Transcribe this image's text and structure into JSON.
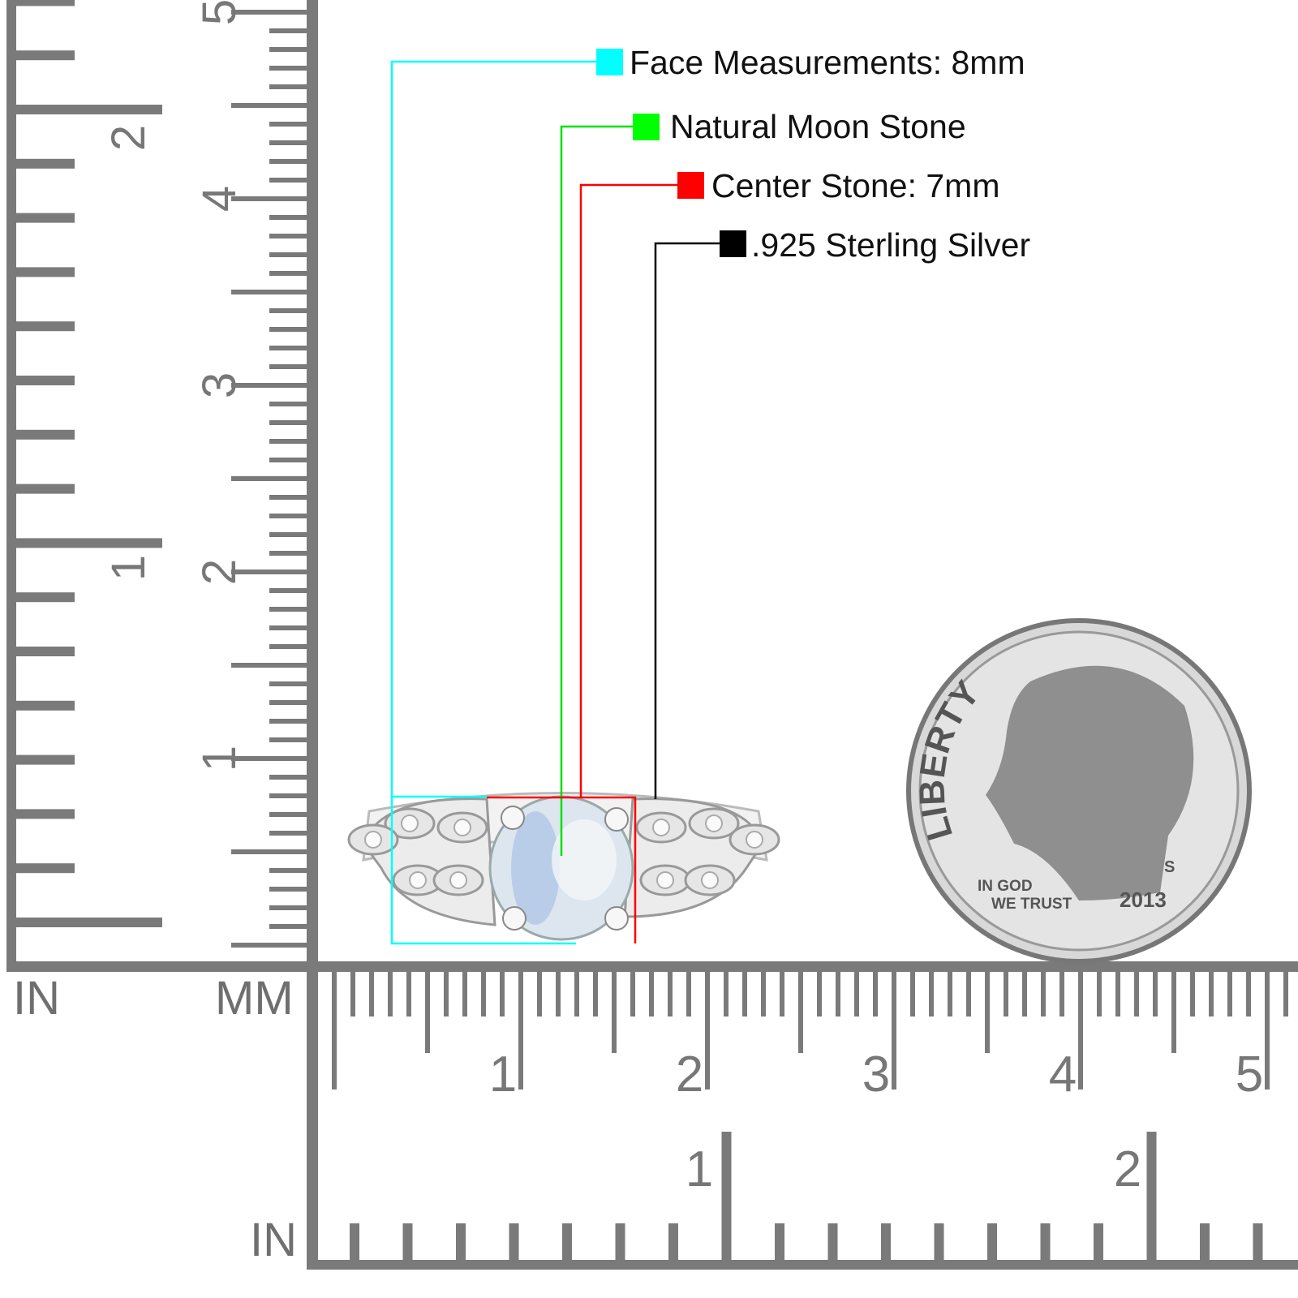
{
  "legend": [
    {
      "label": "Face Measurements: 8mm",
      "color": "#00ffff"
    },
    {
      "label": "Natural Moon Stone",
      "color": "#00ff00"
    },
    {
      "label": "Center Stone: 7mm",
      "color": "#ff0000"
    },
    {
      "label": ".925 Sterling Silver",
      "color": "#000000"
    }
  ],
  "rulers": {
    "vertical": {
      "inch_unit": "IN",
      "mm_unit": "MM",
      "inch_labels": [
        "1",
        "2"
      ],
      "cm_labels": [
        "1",
        "2",
        "3",
        "4",
        "5"
      ]
    },
    "horizontal": {
      "inch_unit": "IN",
      "cm_labels": [
        "1",
        "2",
        "3",
        "4",
        "5"
      ],
      "inch_labels": [
        "1",
        "2"
      ]
    },
    "color": "#7a7a7a"
  },
  "coin": {
    "liberty": "LIBERTY",
    "motto_line1": "IN GOD",
    "motto_line2": "WE TRUST",
    "year": "2013",
    "mint_mark": "S"
  }
}
